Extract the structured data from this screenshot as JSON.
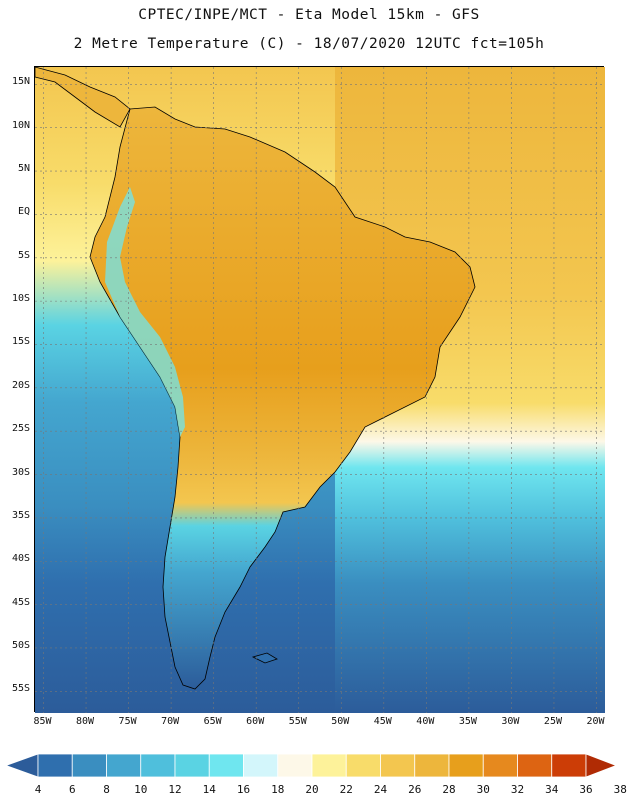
{
  "header": {
    "title_line1": "CPTEC/INPE/MCT -  Eta Model 15km - GFS",
    "title_line2": "2 Metre Temperature (C) - 18/07/2020 12UTC fct=105h"
  },
  "map": {
    "lat_labels": [
      "15N",
      "10N",
      "5N",
      "EQ",
      "5S",
      "10S",
      "15S",
      "20S",
      "25S",
      "30S",
      "35S",
      "40S",
      "45S",
      "50S",
      "55S"
    ],
    "lat_values": [
      15,
      10,
      5,
      0,
      -5,
      -10,
      -15,
      -20,
      -25,
      -30,
      -35,
      -40,
      -45,
      -50,
      -55
    ],
    "lon_labels": [
      "85W",
      "80W",
      "75W",
      "70W",
      "65W",
      "60W",
      "55W",
      "50W",
      "45W",
      "40W",
      "35W",
      "30W",
      "25W",
      "20W"
    ],
    "lon_values": [
      -85,
      -80,
      -75,
      -70,
      -65,
      -60,
      -55,
      -50,
      -45,
      -40,
      -35,
      -30,
      -25,
      -20
    ],
    "lat_range": [
      -57.5,
      17
    ],
    "lon_range": [
      -86,
      -19
    ]
  },
  "legend": {
    "labels": [
      "4",
      "6",
      "8",
      "10",
      "12",
      "14",
      "16",
      "18",
      "20",
      "22",
      "24",
      "26",
      "28",
      "30",
      "32",
      "34",
      "36",
      "38"
    ],
    "colors": [
      "#2c5c9a",
      "#2f6fae",
      "#3a8ec0",
      "#44a6cf",
      "#4fbfdc",
      "#5ad3e3",
      "#6fe6ef",
      "#d3f6fb",
      "#fdf8e8",
      "#fdf29a",
      "#f8dc6a",
      "#f3c64f",
      "#edb63c",
      "#e79f1c",
      "#e6891e",
      "#dd6412",
      "#cc3d06",
      "#b02b04"
    ]
  },
  "colors": {
    "ocean_deep": "#2c5c9a",
    "ocean_mid": "#44a6cf",
    "ocean_light": "#5ad3e3",
    "ocean_warm": "#f3c64f",
    "land_hot": "#e79f1c",
    "land_warm": "#edb63c",
    "land_cool": "#fdf29a"
  }
}
